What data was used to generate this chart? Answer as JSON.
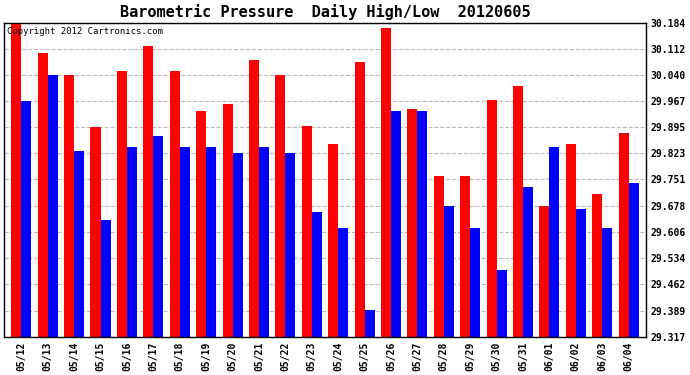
{
  "title": "Barometric Pressure  Daily High/Low  20120605",
  "copyright": "Copyright 2012 Cartronics.com",
  "dates": [
    "05/12",
    "05/13",
    "05/14",
    "05/15",
    "05/16",
    "05/17",
    "05/18",
    "05/19",
    "05/20",
    "05/21",
    "05/22",
    "05/23",
    "05/24",
    "05/25",
    "05/26",
    "05/27",
    "05/28",
    "05/29",
    "05/30",
    "05/31",
    "06/01",
    "06/02",
    "06/03",
    "06/04"
  ],
  "highs": [
    30.184,
    30.1,
    30.04,
    29.895,
    30.05,
    30.12,
    30.05,
    29.94,
    29.96,
    30.08,
    30.04,
    29.9,
    29.85,
    30.075,
    30.17,
    29.945,
    29.76,
    29.76,
    29.97,
    30.01,
    29.678,
    29.85,
    29.71,
    29.88
  ],
  "lows": [
    29.967,
    30.04,
    29.83,
    29.64,
    29.84,
    29.87,
    29.84,
    29.84,
    29.823,
    29.84,
    29.823,
    29.66,
    29.617,
    29.39,
    29.94,
    29.94,
    29.678,
    29.617,
    29.5,
    29.73,
    29.84,
    29.67,
    29.616,
    29.74
  ],
  "high_color": "#ff0000",
  "low_color": "#0000ff",
  "bg_color": "#ffffff",
  "plot_bg_color": "#ffffff",
  "grid_color": "#bbbbbb",
  "title_fontsize": 11,
  "ymin": 29.317,
  "ymax": 30.184,
  "yticks": [
    29.317,
    29.389,
    29.462,
    29.534,
    29.606,
    29.678,
    29.751,
    29.823,
    29.895,
    29.967,
    30.04,
    30.112,
    30.184
  ]
}
